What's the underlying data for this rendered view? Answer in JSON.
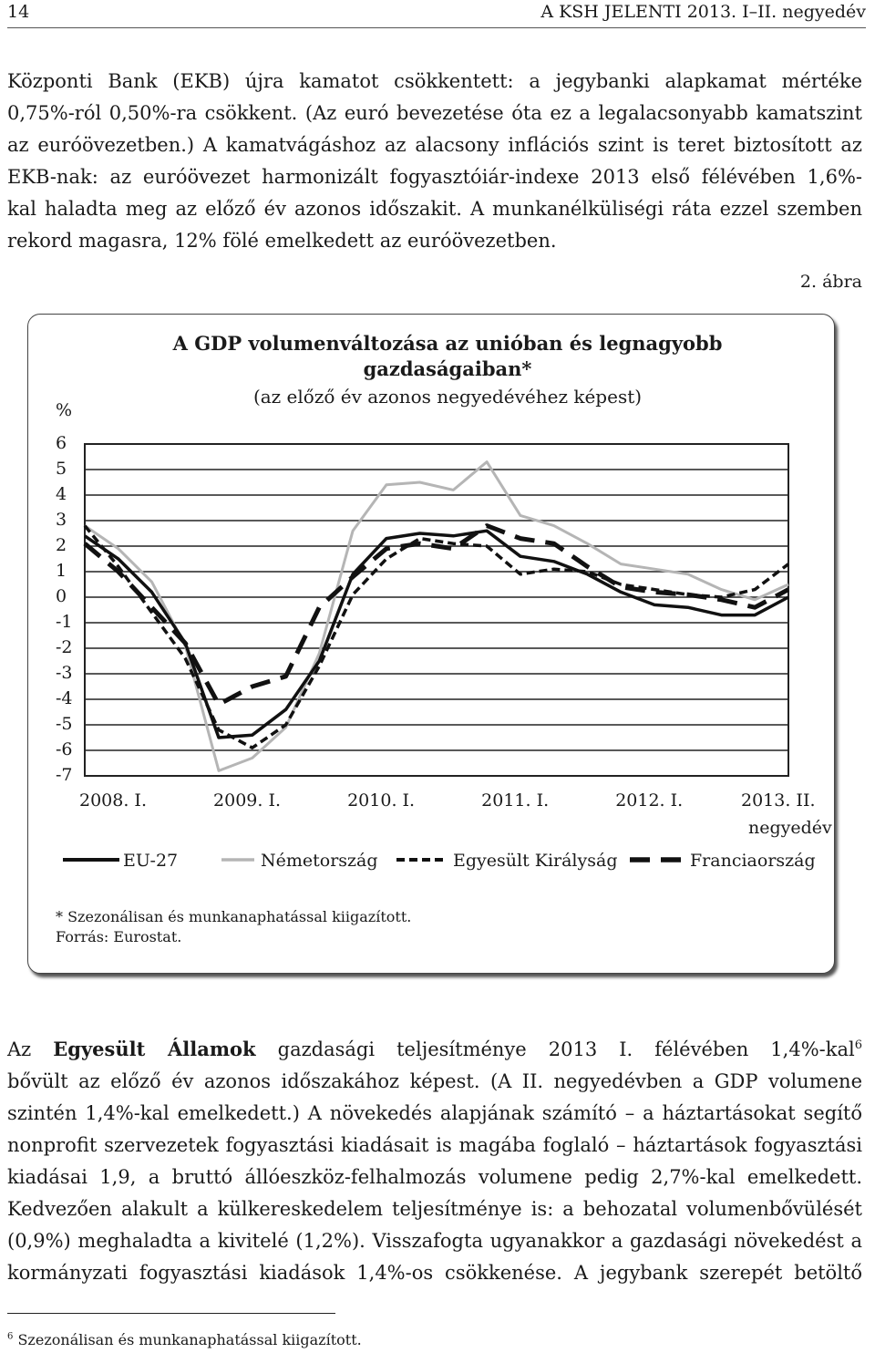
{
  "header": {
    "page_number": "14",
    "publication": "A KSH JELENTI 2013. I–II. negyedév"
  },
  "para1": [
    "Központi Bank (EKB) újra kamatot csökkentett: a jegybanki alapkamat mértéke",
    "0,75%-ról 0,50%-ra csökkent. (Az euró bevezetése óta ez a legalacsonyabb kamatszint",
    "az euróövezetben.) A kamatvágáshoz az alacsony inflációs szint is teret biztosított az",
    "EKB-nak: az euróövezet harmonizált fogyasztóiár-indexe 2013 első félévében 1,6%-",
    "kal haladta meg az előző év azonos időszakit. A munkanélküliségi ráta ezzel szemben",
    "rekord magasra, 12% fölé emelkedett az euróövezetben."
  ],
  "figure_label": "2. ábra",
  "chart_data": {
    "type": "line",
    "title": "A GDP volumenváltozása az unióban és legnagyobb gazdaságaiban*",
    "title_lines": [
      "A GDP volumenváltozása az unióban és legnagyobb",
      "gazdaságaiban*"
    ],
    "subtitle": "(az előző év azonos negyedévéhez képest)",
    "ylabel": "%",
    "ylim": [
      -7,
      6
    ],
    "yticks": [
      "6",
      "5",
      "4",
      "3",
      "2",
      "1",
      "0",
      "-1",
      "-2",
      "-3",
      "-4",
      "-5",
      "-6",
      "-7"
    ],
    "x_tick_labels": [
      "2008. I.",
      "2009. I.",
      "2010. I.",
      "2011. I.",
      "2012. I.",
      "2013. II."
    ],
    "x_last_sub": "negyedév",
    "x_count": 22,
    "x_tick_index": [
      0,
      4,
      8,
      12,
      16,
      21
    ],
    "grid": true,
    "legend_position": "bottom",
    "series": [
      {
        "name": "EU-27",
        "color": "#111111",
        "style": "solid",
        "values": [
          2.4,
          1.5,
          0.2,
          -1.8,
          -5.5,
          -5.4,
          -4.4,
          -2.5,
          0.9,
          2.3,
          2.5,
          2.4,
          2.6,
          1.6,
          1.4,
          0.9,
          0.2,
          -0.3,
          -0.4,
          -0.7,
          -0.7,
          0.0
        ]
      },
      {
        "name": "Németország",
        "color": "#b5b5b5",
        "style": "solid",
        "values": [
          2.8,
          1.9,
          0.6,
          -1.9,
          -6.8,
          -6.3,
          -5.1,
          -2.2,
          2.6,
          4.4,
          4.5,
          4.2,
          5.3,
          3.2,
          2.8,
          2.1,
          1.3,
          1.1,
          0.9,
          0.3,
          -0.1,
          0.5
        ]
      },
      {
        "name": "Egyesült Királyság",
        "color": "#111111",
        "style": "dotted",
        "values": [
          2.8,
          1.2,
          -0.6,
          -2.4,
          -5.2,
          -5.9,
          -5.0,
          -2.7,
          0.1,
          1.5,
          2.3,
          2.1,
          2.0,
          0.9,
          1.1,
          1.0,
          0.5,
          0.3,
          0.1,
          0.0,
          0.3,
          1.3
        ]
      },
      {
        "name": "Franciaország",
        "color": "#111111",
        "style": "dashed",
        "values": [
          2.1,
          1.0,
          -0.4,
          -1.8,
          -4.2,
          -3.5,
          -3.1,
          -0.4,
          0.8,
          1.9,
          2.1,
          1.9,
          2.8,
          2.3,
          2.1,
          1.2,
          0.4,
          0.2,
          0.1,
          -0.1,
          -0.4,
          0.3
        ]
      }
    ],
    "notes": [
      "* Szezonálisan és munkanaphatással kiigazított.",
      "Forrás: Eurostat."
    ]
  },
  "para2": {
    "intro": "Az ",
    "bold": "Egyesült Államok",
    "line1_rest": " gazdasági teljesítménye 2013 I. félévében 1,4%-kal",
    "footnote_ref": "6",
    "lines": [
      "bővült az előző év azonos időszakához képest. (A II. negyedévben a GDP volumene",
      "szintén 1,4%-kal emelkedett.) A növekedés alapjának számító – a háztartásokat segítő",
      "nonprofit szervezetek fogyasztási kiadásait is magába foglaló – háztartások fogyasztási",
      "kiadásai 1,9, a bruttó állóeszköz-felhalmozás volumene pedig 2,7%-kal emelkedett.",
      "Kedvezően alakult a külkereskedelem teljesítménye is: a behozatal volumenbővülését",
      "(0,9%) meghaladta a kivitelé (1,2%). Visszafogta ugyanakkor a gazdasági növekedést a",
      "kormányzati fogyasztási kiadások 1,4%-os csökkenése. A jegybank szerepét betöltő"
    ]
  },
  "footnote": {
    "number": "6",
    "text": "Szezonálisan és munkanaphatással kiigazított."
  }
}
